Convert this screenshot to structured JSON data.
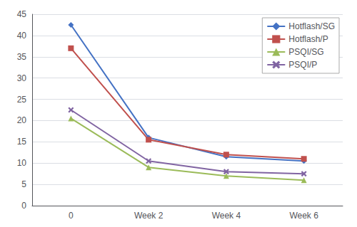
{
  "chart_data": {
    "type": "line",
    "categories": [
      "0",
      "Week 2",
      "Week 4",
      "Week 6"
    ],
    "series": [
      {
        "name": "Hotflash/SG",
        "color": "#4472C4",
        "marker": "diamond",
        "values": [
          42.5,
          16.0,
          11.5,
          10.5
        ]
      },
      {
        "name": "Hotflash/P",
        "color": "#C0504D",
        "marker": "square",
        "values": [
          37.0,
          15.5,
          12.0,
          11.0
        ]
      },
      {
        "name": "PSQI/SG",
        "color": "#9BBB59",
        "marker": "triangle",
        "values": [
          20.5,
          9.0,
          7.0,
          6.0
        ]
      },
      {
        "name": "PSQI/P",
        "color": "#8064A2",
        "marker": "x",
        "values": [
          22.5,
          10.5,
          8.0,
          7.5
        ]
      }
    ],
    "ylim": [
      0,
      45
    ],
    "yticks": [
      0,
      5,
      10,
      15,
      20,
      25,
      30,
      35,
      40,
      45
    ],
    "grid": true,
    "legend": "upper right"
  }
}
